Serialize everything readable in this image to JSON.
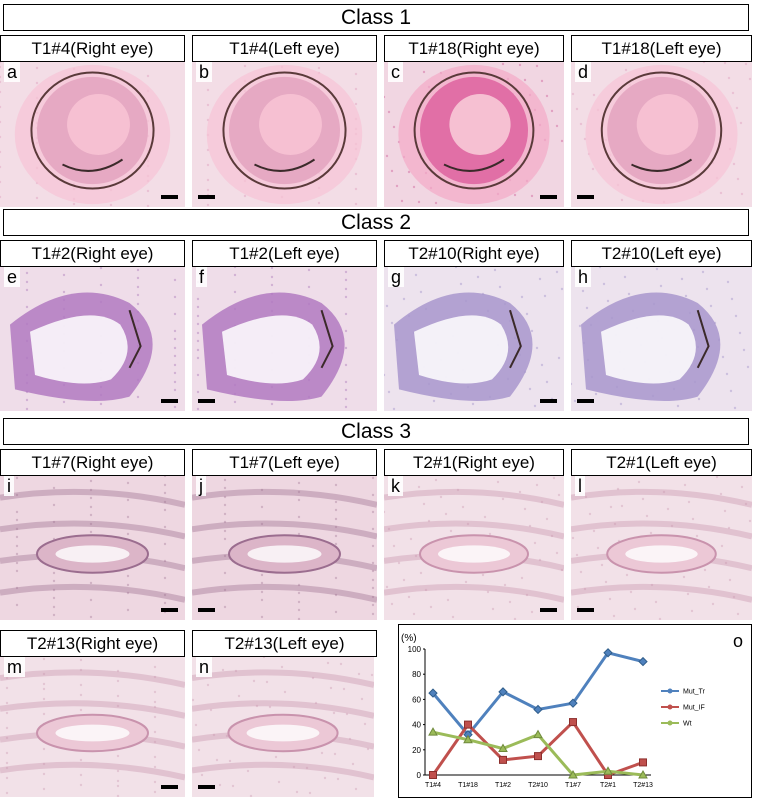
{
  "classes": [
    "Class 1",
    "Class 2",
    "Class 3"
  ],
  "panels": [
    {
      "letter": "a",
      "label": "T1#4(Right eye)",
      "type": "eye",
      "stain": "pink"
    },
    {
      "letter": "b",
      "label": "T1#4(Left eye)",
      "type": "eye",
      "stain": "pink"
    },
    {
      "letter": "c",
      "label": "T1#18(Right eye)",
      "type": "eye",
      "stain": "magenta"
    },
    {
      "letter": "d",
      "label": "T1#18(Left eye)",
      "type": "eye",
      "stain": "pink"
    },
    {
      "letter": "e",
      "label": "T1#2(Right eye)",
      "type": "folded",
      "stain": "purple"
    },
    {
      "letter": "f",
      "label": "T1#2(Left eye)",
      "type": "folded",
      "stain": "purple"
    },
    {
      "letter": "g",
      "label": "T2#10(Right eye)",
      "type": "folded",
      "stain": "lavender"
    },
    {
      "letter": "h",
      "label": "T2#10(Left eye)",
      "type": "folded",
      "stain": "lavender"
    },
    {
      "letter": "i",
      "label": "T1#7(Right eye)",
      "type": "tissue",
      "stain": "dense"
    },
    {
      "letter": "j",
      "label": "T1#7(Left eye)",
      "type": "tissue",
      "stain": "dense"
    },
    {
      "letter": "k",
      "label": "T2#1(Right eye)",
      "type": "tissue",
      "stain": "pale"
    },
    {
      "letter": "l",
      "label": "T2#1(Left eye)",
      "type": "tissue",
      "stain": "pale"
    },
    {
      "letter": "m",
      "label": "T2#13(Right eye)",
      "type": "tissue",
      "stain": "pale"
    },
    {
      "letter": "n",
      "label": "T2#13(Left eye)",
      "type": "tissue",
      "stain": "pale"
    }
  ],
  "chart_panel_letter": "o",
  "chart_data": {
    "type": "line",
    "ylabel_unit": "(%)",
    "ylim": [
      0,
      100
    ],
    "yticks": [
      0,
      20,
      40,
      60,
      80,
      100
    ],
    "categories": [
      "T1#4",
      "T1#18",
      "T1#2",
      "T2#10",
      "T1#7",
      "T2#1",
      "T2#13"
    ],
    "grid": false,
    "legend_position": "right",
    "series": [
      {
        "name": "Mut_Tr",
        "color": "#4f81bd",
        "values": [
          65,
          32,
          66,
          52,
          57,
          97,
          90
        ]
      },
      {
        "name": "Mut_IF",
        "color": "#c0504d",
        "values": [
          0,
          40,
          12,
          15,
          42,
          0,
          10
        ]
      },
      {
        "name": "Wt",
        "color": "#9bbb59",
        "values": [
          34,
          28,
          21,
          32,
          0,
          3,
          0
        ]
      }
    ]
  }
}
